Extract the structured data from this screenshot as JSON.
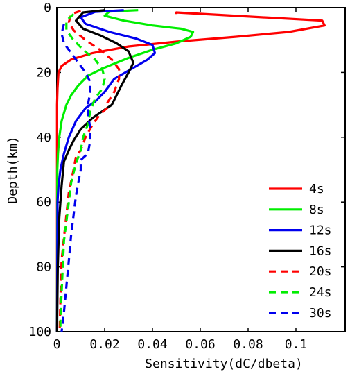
{
  "chart_data": {
    "type": "line",
    "xlabel": "Sensitivity(dC/dbeta)",
    "ylabel": "Depth(km)",
    "xlim": [
      0,
      0.12
    ],
    "ylim": [
      0,
      100
    ],
    "y_inverted": true,
    "xticks": [
      0,
      0.02,
      0.04,
      0.06,
      0.08,
      0.1
    ],
    "xtick_labels": [
      "0",
      "0.02",
      "0.04",
      "0.06",
      "0.08",
      "0.1"
    ],
    "yticks": [
      0,
      20,
      40,
      60,
      80,
      100
    ],
    "ytick_labels": [
      "0",
      "20",
      "40",
      "60",
      "80",
      "100"
    ],
    "grid": false,
    "legend_position": "lower-right",
    "series": [
      {
        "name": "4s",
        "color": "#ff0000",
        "dash": "solid",
        "x": [
          0.05,
          0.05,
          0.111,
          0.112,
          0.097,
          0.075,
          0.05,
          0.03,
          0.015,
          0.006,
          0.002,
          0.0007,
          0.0003,
          0.0001,
          0.0001,
          0.0001
        ],
        "y": [
          2,
          1.5,
          4,
          5.5,
          7.5,
          9,
          10.5,
          12,
          14,
          16,
          18,
          20,
          25,
          30,
          50,
          100
        ]
      },
      {
        "name": "8s",
        "color": "#00ee00",
        "dash": "solid",
        "x": [
          0.034,
          0.022,
          0.02,
          0.028,
          0.04,
          0.052,
          0.057,
          0.056,
          0.05,
          0.04,
          0.03,
          0.02,
          0.013,
          0.009,
          0.006,
          0.004,
          0.002,
          0.001,
          0.0005,
          0.0002,
          0.0001
        ],
        "y": [
          0.8,
          1.2,
          2.5,
          4,
          5.5,
          6.5,
          7.5,
          9,
          11,
          13,
          15.5,
          18.5,
          21,
          24,
          27,
          30,
          35,
          40,
          45,
          50,
          100
        ]
      },
      {
        "name": "12s",
        "color": "#0000ee",
        "dash": "solid",
        "x": [
          0.028,
          0.016,
          0.01,
          0.012,
          0.022,
          0.033,
          0.04,
          0.041,
          0.038,
          0.031,
          0.024,
          0.02,
          0.016,
          0.012,
          0.008,
          0.005,
          0.003,
          0.0015,
          0.0007,
          0.0003,
          0.0001
        ],
        "y": [
          0.8,
          1.3,
          3,
          5,
          7.5,
          9.5,
          11.5,
          14,
          16,
          19,
          22,
          26,
          29,
          31,
          35,
          40,
          45,
          50,
          55,
          60,
          100
        ]
      },
      {
        "name": "16s",
        "color": "#000000",
        "dash": "solid",
        "x": [
          0.02,
          0.011,
          0.008,
          0.011,
          0.018,
          0.025,
          0.03,
          0.032,
          0.03,
          0.027,
          0.025,
          0.023,
          0.02,
          0.015,
          0.01,
          0.007,
          0.005,
          0.003,
          0.002,
          0.001,
          0.0004,
          0.0001
        ],
        "y": [
          0.8,
          1.5,
          4,
          6.5,
          8.5,
          11,
          13.5,
          17,
          20,
          24,
          27,
          30,
          31.5,
          34,
          37.5,
          41,
          44,
          47.5,
          55,
          65,
          80,
          100
        ]
      },
      {
        "name": "20s",
        "color": "#ff0000",
        "dash": "dashed",
        "x": [
          0.01,
          0.006,
          0.005,
          0.007,
          0.012,
          0.018,
          0.023,
          0.026,
          0.026,
          0.024,
          0.021,
          0.021,
          0.018,
          0.015,
          0.012,
          0.01,
          0.008,
          0.007,
          0.005,
          0.004,
          0.003,
          0.002,
          0.0015,
          0.0012
        ],
        "y": [
          1,
          2,
          4.5,
          7,
          10,
          13,
          16,
          19,
          22,
          26,
          29.5,
          31,
          33,
          36,
          40,
          44,
          46,
          50,
          57,
          64,
          71,
          78,
          90,
          100
        ]
      },
      {
        "name": "24s",
        "color": "#00ee00",
        "dash": "dashed",
        "x": [
          0.007,
          0.004,
          0.004,
          0.007,
          0.011,
          0.016,
          0.019,
          0.02,
          0.019,
          0.016,
          0.014,
          0.013,
          0.011,
          0.01,
          0.008,
          0.006,
          0.005,
          0.004,
          0.003,
          0.0025,
          0.002,
          0.0015,
          0.0015
        ],
        "y": [
          2,
          4,
          7,
          10,
          13,
          16,
          19,
          22,
          25,
          28,
          32,
          36,
          40,
          44,
          48,
          54,
          60,
          66,
          72,
          80,
          88,
          96,
          100
        ]
      },
      {
        "name": "30s",
        "color": "#0000ee",
        "dash": "dashed",
        "x": [
          0.003,
          0.002,
          0.003,
          0.006,
          0.009,
          0.012,
          0.014,
          0.014,
          0.013,
          0.013,
          0.014,
          0.014,
          0.013,
          0.01,
          0.01,
          0.009,
          0.008,
          0.007,
          0.006,
          0.005,
          0.004,
          0.003,
          0.002
        ],
        "y": [
          5,
          8,
          11,
          14,
          17,
          20,
          23,
          26,
          30,
          33,
          37,
          41,
          45,
          47,
          50,
          54,
          58,
          64,
          70,
          78,
          86,
          94,
          100
        ]
      }
    ]
  }
}
